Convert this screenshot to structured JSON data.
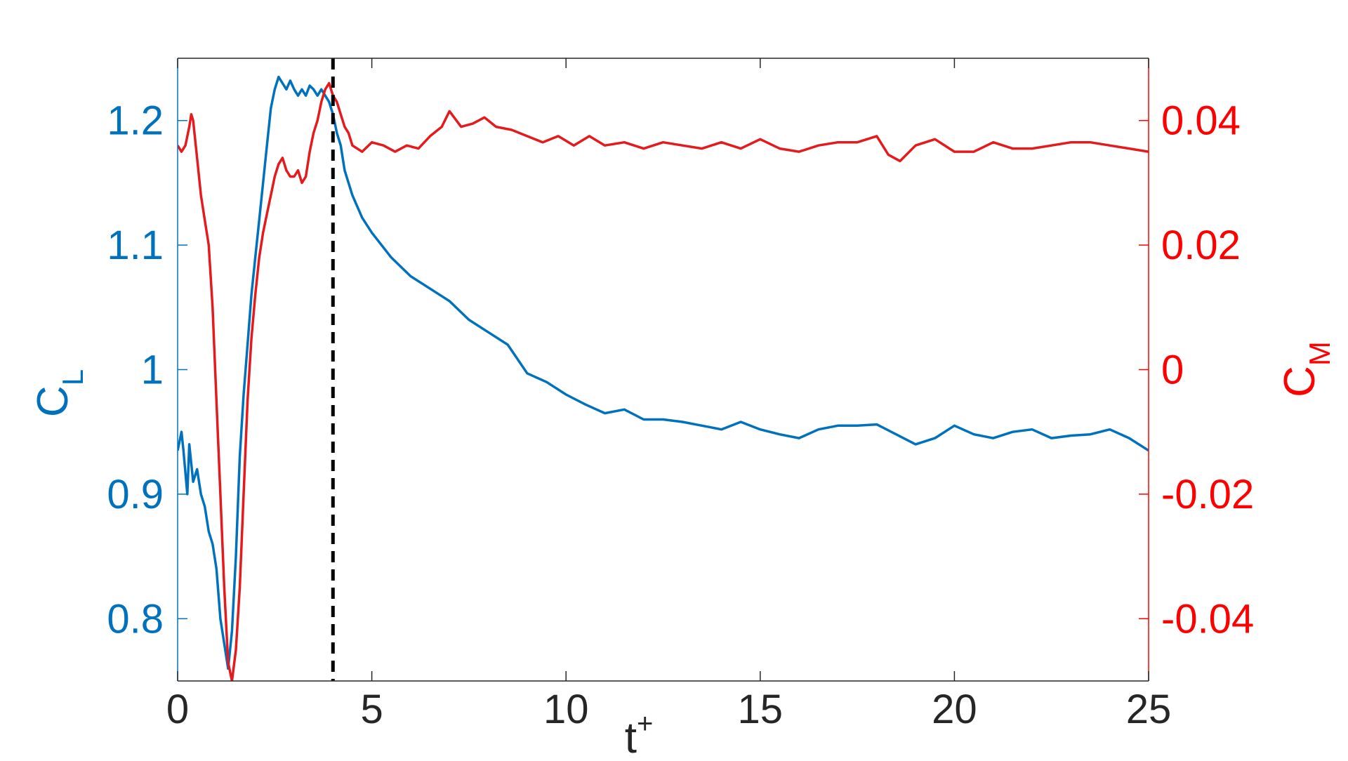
{
  "chart_data": {
    "type": "line",
    "title": "",
    "xlabel": {
      "base": "t",
      "sup": "+"
    },
    "ylabel_left": {
      "base": "C",
      "sub": "L"
    },
    "ylabel_right": {
      "base": "C",
      "sub": "M"
    },
    "xlim": [
      0,
      25
    ],
    "ylim_left": [
      0.75,
      1.25
    ],
    "ylim_right": [
      -0.05,
      0.05
    ],
    "grid": false,
    "legend": "none",
    "x_ticks": [
      {
        "value": 0,
        "label": "0"
      },
      {
        "value": 5,
        "label": "5"
      },
      {
        "value": 10,
        "label": "10"
      },
      {
        "value": 15,
        "label": "15"
      },
      {
        "value": 20,
        "label": "20"
      },
      {
        "value": 25,
        "label": "25"
      }
    ],
    "y_ticks_left": [
      {
        "value": 0.8,
        "label": "0.8"
      },
      {
        "value": 0.9,
        "label": "0.9"
      },
      {
        "value": 1.0,
        "label": "1"
      },
      {
        "value": 1.1,
        "label": "1.1"
      },
      {
        "value": 1.2,
        "label": "1.2"
      }
    ],
    "y_ticks_right": [
      {
        "value": -0.04,
        "label": "-0.04"
      },
      {
        "value": -0.02,
        "label": "-0.02"
      },
      {
        "value": 0,
        "label": "0"
      },
      {
        "value": 0.02,
        "label": "0.02"
      },
      {
        "value": 0.04,
        "label": "0.04"
      }
    ],
    "vertical_marker": {
      "x": 4.0,
      "style": "dashed",
      "color": "#000000"
    },
    "colors": {
      "left_axis": "#0072BD",
      "right_axis": "#FF0000",
      "cl_line": "#0072BD",
      "cm_line": "#E41A1C",
      "text": "#262626"
    },
    "series": [
      {
        "axis": "left",
        "x": [
          0,
          0.1,
          0.15,
          0.25,
          0.3,
          0.4,
          0.5,
          0.6,
          0.7,
          0.8,
          0.9,
          1.0,
          1.1,
          1.2,
          1.3,
          1.4,
          1.5,
          1.6,
          1.7,
          1.8,
          1.9,
          2.0,
          2.1,
          2.2,
          2.3,
          2.4,
          2.5,
          2.6,
          2.7,
          2.8,
          2.9,
          3.0,
          3.1,
          3.2,
          3.3,
          3.4,
          3.5,
          3.6,
          3.7,
          3.8,
          3.9,
          4.0,
          4.1,
          4.2,
          4.3,
          4.4,
          4.5,
          4.75,
          5.0,
          5.5,
          6.0,
          6.5,
          7.0,
          7.5,
          8.0,
          8.5,
          9.0,
          9.5,
          10.0,
          10.5,
          11.0,
          11.5,
          12.0,
          12.5,
          13.0,
          13.5,
          14.0,
          14.5,
          15.0,
          15.5,
          16.0,
          16.5,
          17.0,
          17.5,
          18.0,
          18.5,
          19.0,
          19.5,
          20.0,
          20.5,
          21.0,
          21.5,
          22.0,
          22.5,
          23.0,
          23.5,
          24.0,
          24.5,
          25.0
        ],
        "y": [
          0.935,
          0.95,
          0.935,
          0.9,
          0.94,
          0.91,
          0.92,
          0.9,
          0.89,
          0.87,
          0.86,
          0.84,
          0.8,
          0.78,
          0.76,
          0.79,
          0.85,
          0.93,
          0.98,
          1.02,
          1.06,
          1.09,
          1.12,
          1.15,
          1.18,
          1.21,
          1.225,
          1.235,
          1.23,
          1.225,
          1.232,
          1.225,
          1.22,
          1.225,
          1.22,
          1.228,
          1.225,
          1.22,
          1.225,
          1.22,
          1.215,
          1.205,
          1.19,
          1.18,
          1.16,
          1.15,
          1.14,
          1.122,
          1.11,
          1.09,
          1.075,
          1.065,
          1.055,
          1.04,
          1.03,
          1.02,
          0.997,
          0.99,
          0.98,
          0.972,
          0.965,
          0.968,
          0.96,
          0.96,
          0.958,
          0.955,
          0.952,
          0.958,
          0.952,
          0.948,
          0.945,
          0.952,
          0.955,
          0.955,
          0.956,
          0.948,
          0.94,
          0.945,
          0.955,
          0.948,
          0.945,
          0.95,
          0.952,
          0.945,
          0.947,
          0.948,
          0.952,
          0.945,
          0.935
        ]
      },
      {
        "axis": "right",
        "x": [
          0,
          0.1,
          0.2,
          0.3,
          0.35,
          0.4,
          0.5,
          0.6,
          0.7,
          0.8,
          0.9,
          1.0,
          1.1,
          1.2,
          1.3,
          1.4,
          1.5,
          1.6,
          1.7,
          1.8,
          1.9,
          2.0,
          2.1,
          2.2,
          2.3,
          2.4,
          2.5,
          2.6,
          2.7,
          2.8,
          2.9,
          3.0,
          3.1,
          3.2,
          3.3,
          3.4,
          3.5,
          3.6,
          3.7,
          3.8,
          3.9,
          4.0,
          4.1,
          4.2,
          4.3,
          4.4,
          4.5,
          4.75,
          5.0,
          5.3,
          5.6,
          5.9,
          6.2,
          6.5,
          6.8,
          7.0,
          7.3,
          7.6,
          7.9,
          8.2,
          8.6,
          9.0,
          9.4,
          9.8,
          10.2,
          10.6,
          11.0,
          11.5,
          12.0,
          12.5,
          13.0,
          13.5,
          14.0,
          14.5,
          15.0,
          15.5,
          16.0,
          16.5,
          17.0,
          17.5,
          18.0,
          18.3,
          18.6,
          19.0,
          19.5,
          20.0,
          20.5,
          21.0,
          21.5,
          22.0,
          22.5,
          23.0,
          23.5,
          24.0,
          24.5,
          25.0
        ],
        "y": [
          0.036,
          0.035,
          0.036,
          0.039,
          0.041,
          0.04,
          0.034,
          0.028,
          0.024,
          0.02,
          0.01,
          -0.005,
          -0.02,
          -0.035,
          -0.047,
          -0.05,
          -0.045,
          -0.035,
          -0.02,
          -0.005,
          0.005,
          0.012,
          0.018,
          0.022,
          0.025,
          0.028,
          0.031,
          0.033,
          0.034,
          0.032,
          0.031,
          0.031,
          0.032,
          0.03,
          0.031,
          0.035,
          0.038,
          0.04,
          0.043,
          0.045,
          0.046,
          0.044,
          0.043,
          0.041,
          0.039,
          0.038,
          0.036,
          0.035,
          0.0365,
          0.036,
          0.035,
          0.036,
          0.0355,
          0.0375,
          0.039,
          0.0415,
          0.039,
          0.0395,
          0.0405,
          0.039,
          0.0385,
          0.0375,
          0.0365,
          0.0375,
          0.036,
          0.0375,
          0.036,
          0.0365,
          0.0355,
          0.0365,
          0.036,
          0.0355,
          0.0365,
          0.0355,
          0.037,
          0.0355,
          0.035,
          0.036,
          0.0365,
          0.0365,
          0.0375,
          0.0345,
          0.0335,
          0.036,
          0.037,
          0.035,
          0.035,
          0.0365,
          0.0355,
          0.0355,
          0.036,
          0.0365,
          0.0365,
          0.036,
          0.0355,
          0.035
        ]
      }
    ]
  }
}
